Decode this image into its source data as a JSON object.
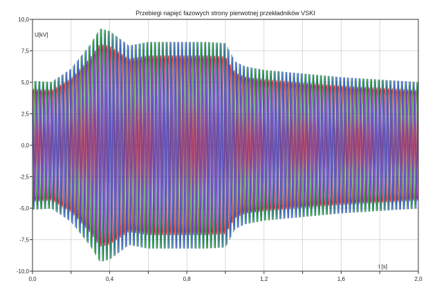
{
  "chart_data": {
    "type": "line",
    "title": "Przebiegi napięć fazowych strony pierwotnej przekładników VSKI",
    "ylabel": "U[kV]",
    "xlabel": "t [s]",
    "xlim": [
      0,
      2.0
    ],
    "ylim": [
      -10,
      10
    ],
    "x_ticks": [
      0,
      0.2,
      0.4,
      0.6,
      0.8,
      1.0,
      1.2,
      1.4,
      1.6,
      1.8,
      2.0
    ],
    "x_tick_labels": [
      "0,0",
      "",
      "0,4",
      "",
      "0,8",
      "",
      "1,2",
      "",
      "1,6",
      "",
      "2,0"
    ],
    "y_ticks": [
      10,
      7.5,
      5,
      2.5,
      0,
      -2.5,
      -5,
      -7.5,
      -10
    ],
    "y_tick_labels": [
      "10,0",
      "7,5",
      "5,0",
      "2,5",
      "0,0",
      "-2,5",
      "-5,0",
      "-7,5",
      "-10,0"
    ],
    "grid": true,
    "colors": [
      "#d62020",
      "#27a327",
      "#2a3bd6",
      "#8a2bb8"
    ],
    "envelope": {
      "t": [
        0,
        0.1,
        0.2,
        0.3,
        0.35,
        0.4,
        0.5,
        0.6,
        0.7,
        0.8,
        0.9,
        1.0,
        1.05,
        1.1,
        1.2,
        1.4,
        1.6,
        1.8,
        2.0
      ],
      "amplitude_kV": [
        5.3,
        5.2,
        6.3,
        8.3,
        9.6,
        9.4,
        8.2,
        8.5,
        8.5,
        8.5,
        8.5,
        8.4,
        6.9,
        6.5,
        6.2,
        5.9,
        5.6,
        5.4,
        5.2
      ]
    },
    "frequency_hz": 50
  }
}
